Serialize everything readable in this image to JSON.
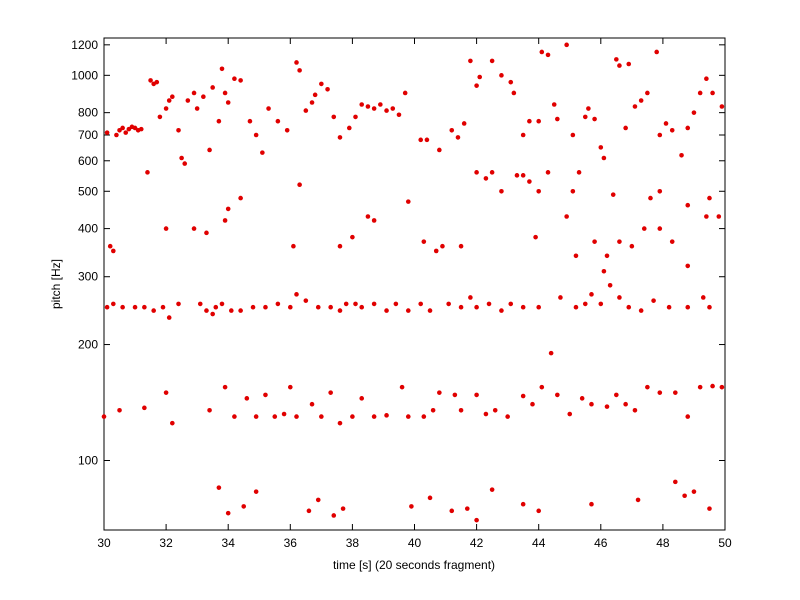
{
  "chart_data": {
    "type": "scatter",
    "xlabel": "time [s] (20 seconds fragment)",
    "ylabel": "pitch [Hz]",
    "color": "#e00000",
    "yscale": "log",
    "xlim": [
      30,
      50
    ],
    "ylim": [
      66,
      1250
    ],
    "xticks": [
      30,
      32,
      34,
      36,
      38,
      40,
      42,
      44,
      46,
      48,
      50
    ],
    "yticks": [
      100,
      200,
      300,
      400,
      500,
      600,
      700,
      800,
      1000,
      1200
    ],
    "x": [
      30.1,
      30.4,
      30.5,
      30.6,
      30.7,
      30.8,
      30.9,
      31.0,
      31.1,
      31.2,
      31.5,
      31.6,
      31.7,
      31.8,
      32.0,
      32.1,
      32.2,
      32.4,
      32.5,
      32.6,
      32.7,
      32.9,
      33.0,
      33.2,
      33.4,
      33.5,
      33.7,
      33.8,
      33.9,
      34.0,
      34.2,
      34.4,
      34.7,
      34.9,
      35.1,
      35.3,
      35.6,
      35.9,
      36.2,
      36.3,
      36.5,
      36.7,
      36.8,
      37.0,
      37.2,
      37.4,
      37.6,
      37.9,
      38.1,
      38.3,
      38.5,
      38.7,
      38.9,
      39.1,
      39.3,
      39.5,
      39.7,
      40.2,
      40.4,
      40.8,
      41.2,
      41.4,
      41.6,
      41.8,
      42.0,
      42.1,
      42.5,
      42.8,
      43.1,
      43.2,
      43.5,
      43.7,
      44.0,
      44.1,
      44.3,
      44.5,
      44.6,
      44.9,
      45.1,
      45.5,
      45.6,
      45.8,
      46.0,
      46.1,
      46.5,
      46.6,
      46.8,
      46.9,
      47.1,
      47.3,
      47.5,
      47.8,
      47.9,
      48.1,
      48.3,
      48.6,
      48.8,
      49.0,
      49.2,
      49.4,
      49.6,
      49.9,
      31.4,
      36.3,
      39.8,
      42.0,
      42.3,
      42.5,
      42.8,
      43.3,
      43.5,
      43.7,
      44.0,
      44.3,
      44.9,
      45.1,
      45.3,
      46.4,
      47.6,
      47.9,
      48.8,
      49.5,
      30.2,
      30.3,
      32.0,
      32.9,
      33.3,
      33.9,
      34.0,
      34.4,
      36.1,
      37.6,
      38.0,
      38.5,
      38.7,
      40.3,
      40.7,
      40.9,
      41.5,
      43.9,
      45.2,
      45.8,
      46.2,
      46.6,
      47.0,
      47.4,
      47.9,
      48.3,
      48.8,
      49.4,
      49.8,
      46.1,
      30.1,
      30.3,
      30.6,
      31.0,
      31.3,
      31.6,
      31.9,
      32.1,
      32.4,
      33.1,
      33.3,
      33.5,
      33.6,
      33.8,
      34.1,
      34.4,
      34.8,
      35.2,
      35.6,
      36.0,
      36.2,
      36.5,
      36.9,
      37.3,
      37.6,
      37.8,
      38.1,
      38.3,
      38.7,
      39.1,
      39.4,
      39.8,
      40.2,
      40.5,
      41.1,
      41.5,
      41.8,
      42.0,
      42.4,
      42.8,
      43.1,
      43.5,
      44.0,
      44.7,
      45.2,
      45.7,
      46.0,
      46.3,
      46.6,
      46.9,
      47.3,
      47.7,
      48.2,
      48.8,
      49.3,
      49.5,
      45.5,
      44.4,
      30.0,
      30.5,
      31.3,
      32.0,
      32.2,
      33.4,
      33.9,
      34.2,
      34.6,
      34.9,
      35.2,
      35.5,
      35.8,
      36.0,
      36.2,
      36.7,
      37.0,
      37.3,
      37.6,
      38.0,
      38.3,
      38.7,
      39.1,
      39.6,
      39.8,
      40.3,
      40.6,
      40.8,
      41.3,
      41.5,
      42.0,
      42.3,
      42.6,
      43.0,
      43.5,
      43.8,
      44.1,
      44.6,
      45.0,
      45.4,
      45.7,
      46.2,
      46.5,
      46.8,
      47.1,
      47.5,
      47.9,
      48.4,
      48.8,
      49.2,
      49.6,
      49.9,
      33.7,
      34.0,
      34.5,
      34.9,
      36.6,
      36.9,
      37.4,
      37.7,
      39.9,
      40.5,
      41.2,
      41.7,
      42.5,
      43.5,
      44.0,
      45.7,
      47.2,
      48.7,
      49.0,
      49.5,
      48.4,
      42.0
    ],
    "values": [
      710,
      700,
      720,
      730,
      710,
      725,
      735,
      730,
      720,
      725,
      970,
      950,
      960,
      780,
      820,
      860,
      880,
      720,
      610,
      590,
      860,
      900,
      820,
      880,
      640,
      930,
      760,
      1040,
      900,
      850,
      980,
      970,
      760,
      700,
      630,
      820,
      760,
      720,
      1080,
      1030,
      810,
      850,
      890,
      950,
      920,
      780,
      690,
      730,
      780,
      840,
      830,
      820,
      840,
      810,
      820,
      790,
      900,
      680,
      680,
      640,
      720,
      690,
      750,
      1090,
      940,
      990,
      1090,
      1000,
      960,
      900,
      700,
      760,
      760,
      1150,
      1130,
      840,
      770,
      1200,
      700,
      780,
      820,
      770,
      650,
      610,
      1100,
      1060,
      730,
      1070,
      830,
      860,
      900,
      1150,
      700,
      750,
      720,
      620,
      730,
      800,
      900,
      980,
      900,
      830,
      560,
      520,
      470,
      560,
      540,
      560,
      500,
      550,
      550,
      530,
      500,
      560,
      430,
      500,
      560,
      490,
      480,
      500,
      460,
      480,
      360,
      350,
      400,
      400,
      390,
      420,
      450,
      480,
      360,
      360,
      380,
      430,
      420,
      370,
      350,
      360,
      360,
      380,
      340,
      370,
      340,
      370,
      360,
      400,
      400,
      370,
      320,
      430,
      430,
      310,
      250,
      255,
      250,
      250,
      250,
      245,
      250,
      235,
      255,
      255,
      245,
      240,
      250,
      255,
      245,
      245,
      250,
      250,
      255,
      250,
      270,
      260,
      250,
      250,
      245,
      255,
      255,
      250,
      255,
      245,
      255,
      245,
      255,
      245,
      255,
      250,
      265,
      250,
      255,
      245,
      255,
      250,
      250,
      265,
      250,
      270,
      255,
      285,
      265,
      250,
      245,
      260,
      250,
      250,
      265,
      250,
      255,
      190,
      130,
      135,
      137,
      150,
      125,
      135,
      155,
      130,
      145,
      130,
      148,
      130,
      132,
      155,
      130,
      140,
      130,
      150,
      125,
      130,
      145,
      130,
      131,
      155,
      130,
      130,
      135,
      150,
      148,
      135,
      148,
      132,
      135,
      130,
      147,
      140,
      155,
      148,
      132,
      145,
      140,
      138,
      148,
      140,
      135,
      155,
      150,
      150,
      130,
      155,
      156,
      155,
      85,
      73,
      76,
      83,
      74,
      79,
      72,
      75,
      76,
      80,
      74,
      75,
      84,
      77,
      74,
      77,
      79,
      81,
      83,
      75,
      88,
      70
    ]
  }
}
